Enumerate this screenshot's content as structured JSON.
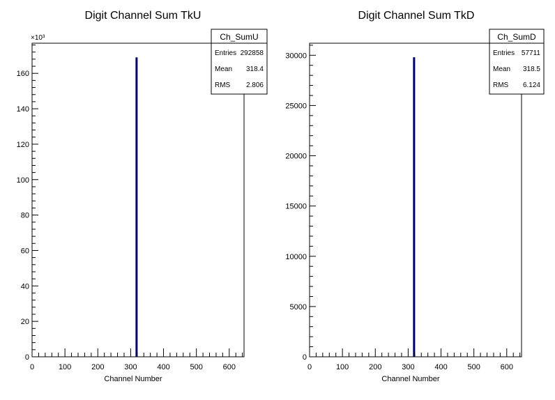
{
  "chart_data": [
    {
      "type": "bar",
      "title": "Digit Channel Sum TkU",
      "xlabel": "Channel Number",
      "ylabel": "",
      "x_ticks": [
        0,
        100,
        200,
        300,
        400,
        500,
        600
      ],
      "xlim": [
        0,
        645
      ],
      "y_ticks": [
        0,
        20,
        40,
        60,
        80,
        100,
        120,
        140,
        160
      ],
      "y_tick_scale_label": "×10³",
      "y_display_max": 177,
      "series": [
        {
          "x": [
            318
          ],
          "values": [
            169
          ]
        }
      ],
      "bar_color": "#000066",
      "stats": {
        "name": "Ch_SumU",
        "rows": [
          {
            "label": "Entries",
            "value": "292858"
          },
          {
            "label": "Mean",
            "value": "318.4"
          },
          {
            "label": "RMS",
            "value": "2.806"
          }
        ]
      },
      "grid": false
    },
    {
      "type": "bar",
      "title": "Digit Channel Sum TkD",
      "xlabel": "Channel Number",
      "ylabel": "",
      "x_ticks": [
        0,
        100,
        200,
        300,
        400,
        500,
        600
      ],
      "xlim": [
        0,
        645
      ],
      "y_ticks": [
        0,
        5000,
        10000,
        15000,
        20000,
        25000,
        30000
      ],
      "y_tick_scale_label": "",
      "y_display_max": 31200,
      "series": [
        {
          "x": [
            318
          ],
          "values": [
            29800
          ]
        }
      ],
      "bar_color": "#000066",
      "stats": {
        "name": "Ch_SumD",
        "rows": [
          {
            "label": "Entries",
            "value": "57711"
          },
          {
            "label": "Mean",
            "value": "318.5"
          },
          {
            "label": "RMS",
            "value": "6.124"
          }
        ]
      },
      "grid": false
    }
  ]
}
